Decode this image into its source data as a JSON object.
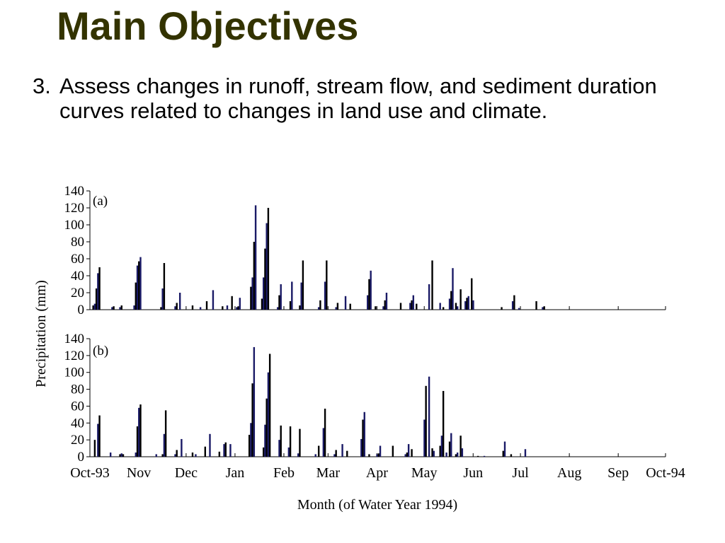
{
  "slide": {
    "title": "Main Objectives",
    "objective_number": "3.",
    "objective_text": "Assess changes in runoff, stream flow, and sediment duration curves related to changes in land use and climate."
  },
  "chart_data": {
    "type": "bar",
    "ylabel": "Precipitation (mm)",
    "xlabel": "Month (of Water Year 1994)",
    "x_tick_labels": [
      "Oct-93",
      "Nov",
      "Dec",
      "Jan",
      "Feb",
      "Mar",
      "Apr",
      "May",
      "Jun",
      "Jul",
      "Aug",
      "Sep",
      "Oct-94"
    ],
    "ylim": [
      0,
      140
    ],
    "y_ticks": [
      0,
      20,
      40,
      60,
      80,
      100,
      120,
      140
    ],
    "bar_colors": [
      "#000000",
      "#1a1a66"
    ],
    "panels": [
      {
        "label": "(a)",
        "daily_precipitation": [
          [
            2,
            5
          ],
          [
            3,
            7
          ],
          [
            4,
            25
          ],
          [
            5,
            43
          ],
          [
            6,
            50
          ],
          [
            14,
            3
          ],
          [
            15,
            4
          ],
          [
            19,
            3
          ],
          [
            20,
            5
          ],
          [
            28,
            5
          ],
          [
            29,
            32
          ],
          [
            30,
            52
          ],
          [
            31,
            57
          ],
          [
            32,
            62
          ],
          [
            45,
            3
          ],
          [
            46,
            25
          ],
          [
            47,
            55
          ],
          [
            54,
            4
          ],
          [
            55,
            8
          ],
          [
            57,
            20
          ],
          [
            65,
            5
          ],
          [
            70,
            3
          ],
          [
            74,
            10
          ],
          [
            78,
            23
          ],
          [
            84,
            4
          ],
          [
            87,
            5
          ],
          [
            90,
            16
          ],
          [
            93,
            3
          ],
          [
            94,
            4
          ],
          [
            95,
            14
          ],
          [
            102,
            27
          ],
          [
            103,
            38
          ],
          [
            104,
            80
          ],
          [
            105,
            123
          ],
          [
            109,
            13
          ],
          [
            110,
            38
          ],
          [
            111,
            72
          ],
          [
            112,
            102
          ],
          [
            113,
            120
          ],
          [
            119,
            3
          ],
          [
            120,
            17
          ],
          [
            121,
            30
          ],
          [
            127,
            10
          ],
          [
            128,
            33
          ],
          [
            133,
            5
          ],
          [
            134,
            32
          ],
          [
            135,
            58
          ],
          [
            145,
            3
          ],
          [
            146,
            11
          ],
          [
            149,
            33
          ],
          [
            150,
            58
          ],
          [
            156,
            3
          ],
          [
            157,
            8
          ],
          [
            162,
            16
          ],
          [
            165,
            7
          ],
          [
            176,
            17
          ],
          [
            177,
            36
          ],
          [
            178,
            46
          ],
          [
            181,
            4
          ],
          [
            186,
            4
          ],
          [
            187,
            11
          ],
          [
            188,
            20
          ],
          [
            197,
            8
          ],
          [
            203,
            8
          ],
          [
            204,
            11
          ],
          [
            205,
            17
          ],
          [
            207,
            7
          ],
          [
            215,
            30
          ],
          [
            217,
            58
          ],
          [
            222,
            8
          ],
          [
            224,
            3
          ],
          [
            228,
            13
          ],
          [
            229,
            22
          ],
          [
            230,
            49
          ],
          [
            232,
            8
          ],
          [
            233,
            4
          ],
          [
            235,
            24
          ],
          [
            238,
            10
          ],
          [
            239,
            14
          ],
          [
            240,
            16
          ],
          [
            242,
            37
          ],
          [
            243,
            11
          ],
          [
            261,
            3
          ],
          [
            268,
            10
          ],
          [
            269,
            17
          ],
          [
            272,
            2
          ],
          [
            283,
            10
          ],
          [
            287,
            3
          ],
          [
            288,
            4
          ]
        ]
      },
      {
        "label": "(b)",
        "daily_precipitation": [
          [
            3,
            20
          ],
          [
            5,
            39
          ],
          [
            6,
            49
          ],
          [
            13,
            5
          ],
          [
            19,
            3
          ],
          [
            20,
            4
          ],
          [
            21,
            3
          ],
          [
            29,
            5
          ],
          [
            30,
            36
          ],
          [
            31,
            58
          ],
          [
            32,
            62
          ],
          [
            42,
            3
          ],
          [
            46,
            3
          ],
          [
            47,
            27
          ],
          [
            48,
            55
          ],
          [
            54,
            3
          ],
          [
            55,
            8
          ],
          [
            58,
            21
          ],
          [
            65,
            5
          ],
          [
            67,
            3
          ],
          [
            73,
            12
          ],
          [
            76,
            27
          ],
          [
            82,
            6
          ],
          [
            85,
            15
          ],
          [
            86,
            17
          ],
          [
            89,
            15
          ],
          [
            101,
            26
          ],
          [
            102,
            40
          ],
          [
            103,
            87
          ],
          [
            104,
            130
          ],
          [
            110,
            11
          ],
          [
            111,
            38
          ],
          [
            112,
            69
          ],
          [
            113,
            100
          ],
          [
            114,
            122
          ],
          [
            120,
            20
          ],
          [
            121,
            37
          ],
          [
            126,
            11
          ],
          [
            127,
            36
          ],
          [
            132,
            4
          ],
          [
            133,
            33
          ],
          [
            143,
            3
          ],
          [
            145,
            13
          ],
          [
            148,
            34
          ],
          [
            149,
            57
          ],
          [
            155,
            3
          ],
          [
            156,
            8
          ],
          [
            160,
            15
          ],
          [
            163,
            7
          ],
          [
            172,
            21
          ],
          [
            173,
            44
          ],
          [
            174,
            53
          ],
          [
            177,
            3
          ],
          [
            182,
            3
          ],
          [
            183,
            4
          ],
          [
            184,
            13
          ],
          [
            192,
            13
          ],
          [
            200,
            3
          ],
          [
            201,
            5
          ],
          [
            202,
            15
          ],
          [
            204,
            9
          ],
          [
            212,
            44
          ],
          [
            213,
            84
          ],
          [
            215,
            95
          ],
          [
            217,
            10
          ],
          [
            218,
            7
          ],
          [
            222,
            13
          ],
          [
            223,
            25
          ],
          [
            224,
            78
          ],
          [
            226,
            5
          ],
          [
            228,
            18
          ],
          [
            229,
            28
          ],
          [
            232,
            3
          ],
          [
            233,
            5
          ],
          [
            235,
            25
          ],
          [
            236,
            10
          ],
          [
            246,
            1
          ],
          [
            250,
            1
          ],
          [
            262,
            7
          ],
          [
            263,
            18
          ],
          [
            267,
            3
          ],
          [
            276,
            9
          ]
        ]
      }
    ]
  }
}
